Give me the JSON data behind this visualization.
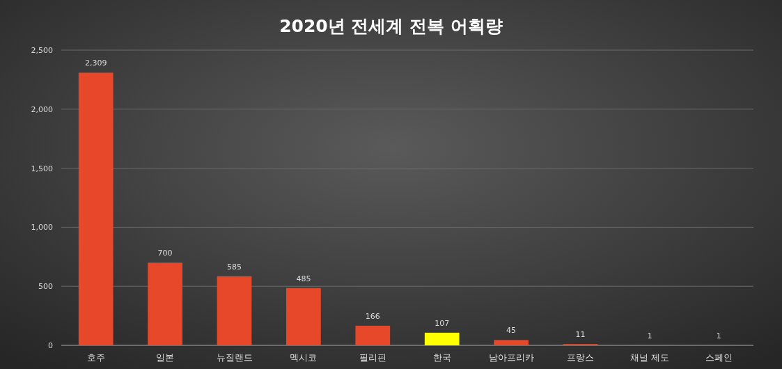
{
  "chart_data": {
    "type": "bar",
    "title": "2020년 전세계 전복 어획량",
    "categories": [
      "호주",
      "일본",
      "뉴질랜드",
      "멕시코",
      "필리핀",
      "한국",
      "남아프리카",
      "프랑스",
      "채널 제도",
      "스페인"
    ],
    "values": [
      2309,
      700,
      585,
      485,
      166,
      107,
      45,
      11,
      1,
      1
    ],
    "value_labels": [
      "2,309",
      "700",
      "585",
      "485",
      "166",
      "107",
      "45",
      "11",
      "1",
      "1"
    ],
    "colors": [
      "#e8482a",
      "#e8482a",
      "#e8482a",
      "#e8482a",
      "#e8482a",
      "#ffff00",
      "#e8482a",
      "#e8482a",
      "#e8482a",
      "#e8482a"
    ],
    "ylim": [
      0,
      2500
    ],
    "yticks": [
      0,
      500,
      {
        "value": 1000,
        "label": "1,000"
      },
      {
        "value": 1500,
        "label": "1,500"
      },
      {
        "value": 2000,
        "label": "2,000"
      },
      {
        "value": 2500,
        "label": "2,500"
      }
    ],
    "grid": "y"
  }
}
